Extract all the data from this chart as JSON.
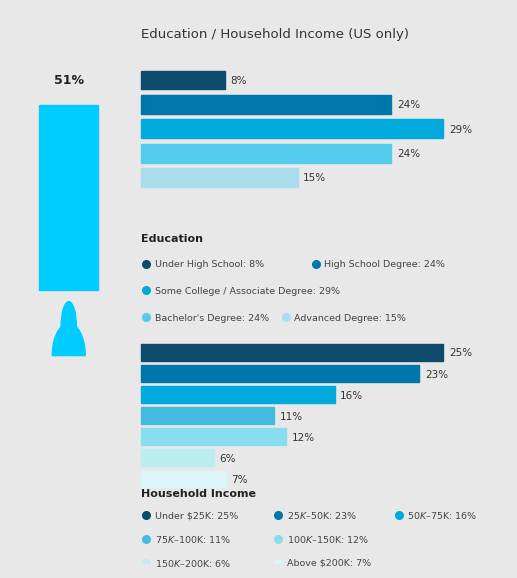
{
  "title": "Education / Household Income (US only)",
  "bg_color": "#e8e8e8",
  "panel_color": "#ffffff",
  "left_panel_color": "#ffffff",
  "edu_bars": [
    {
      "label": "8%",
      "value": 8,
      "color": "#0d4a6b"
    },
    {
      "label": "24%",
      "value": 24,
      "color": "#0077aa"
    },
    {
      "label": "29%",
      "value": 29,
      "color": "#00aadd"
    },
    {
      "label": "24%",
      "value": 24,
      "color": "#55ccee"
    },
    {
      "label": "15%",
      "value": 15,
      "color": "#aadeee"
    }
  ],
  "edu_max": 29,
  "inc_bars": [
    {
      "label": "25%",
      "value": 25,
      "color": "#0d4a6b"
    },
    {
      "label": "23%",
      "value": 23,
      "color": "#0077aa"
    },
    {
      "label": "16%",
      "value": 16,
      "color": "#00aadd"
    },
    {
      "label": "11%",
      "value": 11,
      "color": "#44bbdd"
    },
    {
      "label": "12%",
      "value": 12,
      "color": "#88ddee"
    },
    {
      "label": "6%",
      "value": 6,
      "color": "#bbeeee"
    },
    {
      "label": "7%",
      "value": 7,
      "color": "#ddf4f8"
    }
  ],
  "inc_max": 25,
  "left_bar_value": "51%",
  "left_bar_color": "#00ccff",
  "edu_legend_colors": [
    "#0d4a6b",
    "#0077aa",
    "#00aadd",
    "#55ccee",
    "#aadeee"
  ],
  "edu_legend_labels": [
    "Under High School: 8%",
    "High School Degree: 24%",
    "Some College / Associate Degree: 29%",
    "Bachelor's Degree: 24%",
    "Advanced Degree: 15%"
  ],
  "inc_legend_colors": [
    "#0d4a6b",
    "#0077aa",
    "#00aadd",
    "#44bbdd",
    "#88ddee",
    "#bbeeee",
    "#ddf4f8"
  ],
  "inc_legend_labels": [
    "Under $25K: 25%",
    "$25K–$50K: 23%",
    "$50K–$75K: 16%",
    "$75K–$100K: 11%",
    "$100K–$150K: 12%",
    "$150K–$200K: 6%",
    "Above $200K: 7%"
  ]
}
